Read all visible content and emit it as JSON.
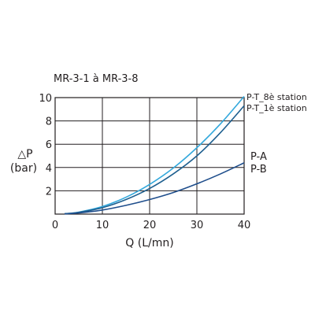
{
  "chart_data": {
    "type": "line",
    "title": "MR-3-1 à MR-3-8",
    "xlabel": "Q (L/mn)",
    "ylabel": [
      "△P",
      "(bar)"
    ],
    "xlim": [
      0,
      40
    ],
    "ylim": [
      0,
      10
    ],
    "x_ticks": [
      "0",
      "10",
      "20",
      "30",
      "40"
    ],
    "y_ticks": [
      "2",
      "4",
      "6",
      "8",
      "10"
    ],
    "grid": true,
    "series": [
      {
        "name": "P-T_8è station",
        "color": "#33a8dc",
        "x": [
          2,
          5,
          10,
          15,
          20,
          25,
          30,
          35,
          40
        ],
        "y": [
          0.03,
          0.17,
          0.65,
          1.45,
          2.55,
          3.95,
          5.7,
          7.75,
          10.1
        ]
      },
      {
        "name": "P-T_1è station",
        "color": "#1e5f8f",
        "x": [
          2,
          5,
          10,
          15,
          20,
          25,
          30,
          35,
          40
        ],
        "y": [
          0.03,
          0.15,
          0.55,
          1.25,
          2.2,
          3.45,
          5.0,
          7.0,
          9.3
        ]
      },
      {
        "name": "P-A",
        "color": "#1f4e8c",
        "x": [
          2,
          5,
          10,
          15,
          20,
          25,
          30,
          35,
          40
        ],
        "y": [
          0.02,
          0.1,
          0.35,
          0.75,
          1.25,
          1.85,
          2.6,
          3.45,
          4.4
        ]
      },
      {
        "name": "P-B",
        "color": "#1f4e8c",
        "x": [
          2,
          5,
          10,
          15,
          20,
          25,
          30,
          35,
          40
        ],
        "y": [
          0.02,
          0.1,
          0.35,
          0.75,
          1.25,
          1.85,
          2.6,
          3.45,
          4.4
        ]
      }
    ],
    "annotations": [
      {
        "text": "P-T_8è station",
        "series": 0
      },
      {
        "text": "P-T_1è station",
        "series": 1
      },
      {
        "text": "P-A",
        "series": 2
      },
      {
        "text": "P-B",
        "series": 3
      }
    ]
  }
}
